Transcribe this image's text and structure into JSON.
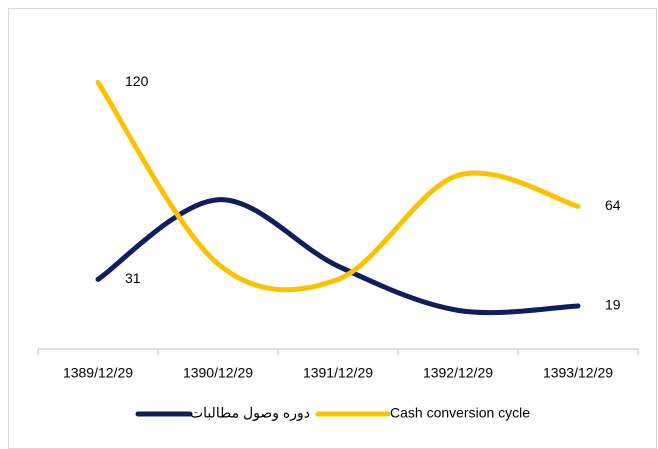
{
  "chart_data": {
    "type": "line",
    "categories": [
      "1389/12/29",
      "1390/12/29",
      "1391/12/29",
      "1392/12/29",
      "1393/12/29"
    ],
    "series": [
      {
        "name": "دوره وصول مطالبات",
        "color": "#0e1f5b",
        "values": [
          31,
          67,
          37,
          17,
          19
        ],
        "value_labels": [
          "31",
          null,
          null,
          null,
          "19"
        ]
      },
      {
        "name": "Cash conversion cycle",
        "color": "#fcc200",
        "values": [
          120,
          38,
          31,
          78,
          64
        ],
        "value_labels": [
          "120",
          null,
          null,
          null,
          "64"
        ]
      }
    ],
    "ylim": [
      0,
      150
    ],
    "smooth": true
  }
}
